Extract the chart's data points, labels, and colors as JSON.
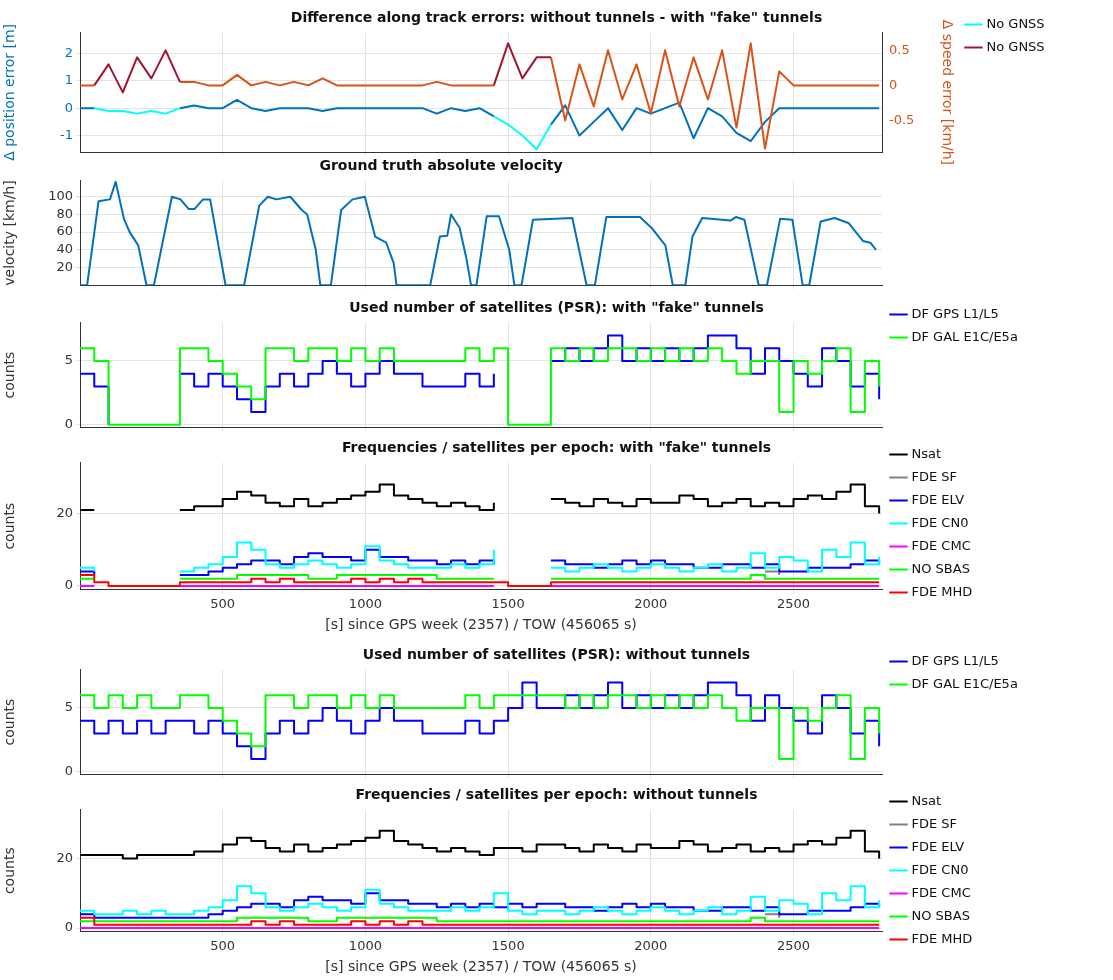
{
  "chart_data": [
    {
      "type": "line",
      "title": "Difference along track errors: without tunnels - with \"fake\" tunnels",
      "ylabel": "Δ position error [m]",
      "y2label": "Δ speed error [km/h]",
      "xlim": [
        0,
        2810
      ],
      "xticks": [
        500,
        1000,
        1500,
        2000,
        2500
      ],
      "ylim": [
        -1.6,
        2.75
      ],
      "yticks": [
        -1,
        0,
        1,
        2
      ],
      "y2lim": [
        -0.95,
        0.75
      ],
      "y2ticks": [
        -0.5,
        0,
        0.5
      ],
      "grid": true,
      "legend": "top right",
      "tick_labels": "y",
      "x": [
        0,
        50,
        100,
        150,
        200,
        250,
        300,
        350,
        400,
        450,
        500,
        550,
        600,
        650,
        700,
        750,
        800,
        850,
        900,
        950,
        1000,
        1050,
        1100,
        1150,
        1200,
        1250,
        1300,
        1350,
        1400,
        1450,
        1500,
        1550,
        1600,
        1650,
        1700,
        1750,
        1800,
        1850,
        1900,
        1950,
        2000,
        2050,
        2100,
        2150,
        2200,
        2250,
        2300,
        2350,
        2400,
        2450,
        2500,
        2550,
        2600,
        2650,
        2700,
        2750,
        2800
      ],
      "series": [
        {
          "color": "#0072bd",
          "values": [
            0,
            0,
            null,
            null,
            null,
            null,
            null,
            0,
            0.1,
            0,
            0,
            0.3,
            0,
            -0.1,
            0,
            0,
            0,
            -0.1,
            0,
            0,
            0,
            0,
            0,
            0,
            0,
            -0.2,
            0,
            -0.1,
            0,
            -0.3,
            null,
            null,
            null,
            -0.6,
            0.1,
            -1.0,
            -0.5,
            0,
            -0.8,
            0,
            -0.2,
            0,
            0.2,
            -1.1,
            0,
            -0.3,
            -0.9,
            -1.2,
            -0.5,
            0,
            0,
            0,
            0,
            0,
            0,
            0,
            0
          ]
        },
        {
          "name": "No GNSS",
          "color": "#00ffff",
          "values": [
            null,
            0,
            -0.1,
            -0.1,
            -0.2,
            -0.1,
            -0.2,
            0,
            null,
            null,
            null,
            null,
            null,
            null,
            null,
            null,
            null,
            null,
            null,
            null,
            null,
            null,
            null,
            null,
            null,
            null,
            null,
            null,
            null,
            -0.3,
            -0.6,
            -1.0,
            -1.5,
            -0.6,
            null,
            null,
            null,
            null,
            null,
            null,
            null,
            null,
            null,
            null,
            null,
            null,
            null,
            null,
            null,
            null,
            null,
            null,
            null,
            null,
            null,
            null,
            null
          ]
        },
        {
          "axis": "y2",
          "color": "#d95319",
          "values": [
            0,
            0,
            null,
            null,
            null,
            null,
            null,
            0.05,
            0.05,
            0,
            0,
            0.15,
            0,
            0.05,
            0,
            0.05,
            0,
            0.1,
            0,
            0,
            0,
            0,
            0,
            0,
            0,
            0.05,
            0,
            0,
            0,
            0,
            null,
            null,
            null,
            0.4,
            -0.5,
            0.3,
            -0.3,
            0.5,
            -0.2,
            0.3,
            -0.4,
            0.5,
            -0.3,
            0.4,
            -0.2,
            0.5,
            -0.6,
            0.6,
            -0.9,
            0.2,
            0,
            0,
            0,
            0,
            0,
            0,
            0
          ]
        },
        {
          "name": "No GNSS",
          "axis": "y2",
          "color": "#a2142f",
          "values": [
            null,
            0,
            0.3,
            -0.1,
            0.4,
            0.1,
            0.5,
            0.05,
            null,
            null,
            null,
            null,
            null,
            null,
            null,
            null,
            null,
            null,
            null,
            null,
            null,
            null,
            null,
            null,
            null,
            null,
            null,
            null,
            null,
            0,
            0.6,
            0.1,
            0.4,
            0.4,
            null,
            null,
            null,
            null,
            null,
            null,
            null,
            null,
            null,
            null,
            null,
            null,
            null,
            null,
            null,
            null,
            null,
            null,
            null,
            null,
            null,
            null,
            null
          ]
        }
      ]
    },
    {
      "type": "line",
      "title": "Ground truth absolute velocity",
      "ylabel": "velocity [km/h]",
      "xlim": [
        0,
        2810
      ],
      "xticks": [
        500,
        1000,
        1500,
        2000,
        2500
      ],
      "ylim": [
        0,
        118
      ],
      "yticks": [
        20,
        40,
        60,
        80,
        100
      ],
      "grid": true,
      "tick_labels": "y",
      "x": [
        0,
        25,
        65,
        105,
        125,
        154,
        174,
        204,
        233,
        259,
        322,
        352,
        381,
        401,
        431,
        456,
        510,
        575,
        628,
        658,
        688,
        737,
        777,
        796,
        826,
        842,
        879,
        915,
        955,
        998,
        1034,
        1073,
        1099,
        1109,
        1227,
        1261,
        1287,
        1300,
        1330,
        1354,
        1370,
        1389,
        1425,
        1468,
        1504,
        1522,
        1547,
        1587,
        1725,
        1775,
        1804,
        1844,
        1962,
        2002,
        2051,
        2077,
        2121,
        2146,
        2180,
        2279,
        2298,
        2328,
        2378,
        2407,
        2453,
        2496,
        2532,
        2555,
        2595,
        2644,
        2694,
        2743,
        2769,
        2789
      ],
      "series": [
        {
          "color": "#0072bd",
          "values": [
            0,
            0,
            95,
            97,
            117,
            75,
            60,
            45,
            0,
            0,
            100,
            97,
            86,
            86,
            97,
            97,
            0,
            0,
            90,
            100,
            97,
            100,
            85,
            80,
            40,
            0,
            0,
            85,
            97,
            100,
            55,
            48,
            25,
            0,
            0,
            55,
            56,
            80,
            65,
            30,
            0,
            0,
            78,
            78,
            40,
            0,
            0,
            74,
            76,
            0,
            0,
            77,
            77,
            65,
            45,
            0,
            0,
            55,
            76,
            73,
            77,
            74,
            0,
            0,
            75,
            74,
            0,
            0,
            72,
            76,
            70,
            50,
            48,
            40
          ]
        }
      ]
    },
    {
      "type": "step",
      "title": "Used number of satellites (PSR): with \"fake\" tunnels",
      "ylabel": "counts",
      "xlim": [
        0,
        2810
      ],
      "xticks": [
        500,
        1000,
        1500,
        2000,
        2500
      ],
      "ylim": [
        -0.2,
        8
      ],
      "yticks": [
        0,
        5
      ],
      "grid": true,
      "legend": "top right",
      "tick_labels": "y",
      "x": [
        0,
        50,
        100,
        150,
        200,
        250,
        300,
        350,
        400,
        450,
        500,
        550,
        600,
        650,
        700,
        750,
        800,
        850,
        900,
        950,
        1000,
        1050,
        1100,
        1150,
        1200,
        1250,
        1300,
        1350,
        1400,
        1450,
        1500,
        1550,
        1600,
        1650,
        1700,
        1750,
        1800,
        1850,
        1900,
        1950,
        2000,
        2050,
        2100,
        2150,
        2200,
        2250,
        2300,
        2350,
        2400,
        2450,
        2500,
        2550,
        2600,
        2650,
        2700,
        2750,
        2800
      ],
      "series": [
        {
          "name": "DF GPS L1/L5",
          "color": "#0000ff",
          "values": [
            4,
            3,
            0,
            null,
            null,
            null,
            null,
            4,
            3,
            4,
            3,
            2,
            1,
            3,
            4,
            3,
            4,
            5,
            4,
            3,
            4,
            5,
            4,
            4,
            3,
            3,
            3,
            4,
            3,
            4,
            null,
            null,
            null,
            5,
            6,
            5,
            6,
            7,
            5,
            6,
            5,
            6,
            5,
            6,
            7,
            7,
            6,
            4,
            6,
            5,
            4,
            3,
            6,
            5,
            3,
            4,
            2
          ]
        },
        {
          "name": "DF GAL E1C/E5a",
          "color": "#00ff00",
          "values": [
            6,
            5,
            0,
            0,
            0,
            0,
            0,
            6,
            6,
            5,
            4,
            3,
            2,
            6,
            6,
            5,
            6,
            6,
            5,
            6,
            5,
            6,
            5,
            5,
            5,
            5,
            5,
            6,
            5,
            6,
            0,
            0,
            0,
            6,
            5,
            6,
            5,
            6,
            6,
            5,
            6,
            5,
            6,
            5,
            6,
            5,
            4,
            5,
            5,
            1,
            5,
            4,
            5,
            6,
            1,
            5,
            3
          ]
        }
      ]
    },
    {
      "type": "step",
      "title": "Frequencies / satellites per epoch: with \"fake\" tunnels",
      "xlabel": "[s] since GPS week (2357) / TOW (456065 s)",
      "ylabel": "counts",
      "xlim": [
        0,
        2810
      ],
      "xticks": [
        500,
        1000,
        1500,
        2000,
        2500
      ],
      "ylim": [
        -1,
        34
      ],
      "yticks": [
        0,
        20
      ],
      "grid": true,
      "legend": "top right",
      "x": [
        0,
        50,
        100,
        150,
        200,
        250,
        300,
        350,
        400,
        450,
        500,
        550,
        600,
        650,
        700,
        750,
        800,
        850,
        900,
        950,
        1000,
        1050,
        1100,
        1150,
        1200,
        1250,
        1300,
        1350,
        1400,
        1450,
        1500,
        1550,
        1600,
        1650,
        1700,
        1750,
        1800,
        1850,
        1900,
        1950,
        2000,
        2050,
        2100,
        2150,
        2200,
        2250,
        2300,
        2350,
        2400,
        2450,
        2500,
        2550,
        2600,
        2650,
        2700,
        2750,
        2800
      ],
      "series": [
        {
          "name": "Nsat",
          "color": "#000000",
          "values": [
            21,
            21,
            null,
            null,
            null,
            null,
            null,
            21,
            22,
            22,
            24,
            26,
            25,
            23,
            22,
            24,
            22,
            23,
            24,
            25,
            26,
            28,
            25,
            24,
            23,
            22,
            23,
            22,
            21,
            23,
            null,
            null,
            null,
            24,
            23,
            22,
            24,
            23,
            22,
            24,
            23,
            23,
            25,
            24,
            22,
            23,
            24,
            22,
            23,
            22,
            24,
            25,
            24,
            26,
            28,
            22,
            20
          ]
        },
        {
          "name": "FDE SF",
          "color": "#808080",
          "values": [
            null,
            null,
            null,
            null,
            null,
            null,
            null,
            null,
            null,
            null,
            null,
            null,
            null,
            null,
            null,
            null,
            null,
            null,
            null,
            null,
            null,
            null,
            null,
            null,
            null,
            null,
            null,
            null,
            null,
            null,
            null,
            null,
            null,
            null,
            null,
            null,
            null,
            null,
            null,
            null,
            null,
            null,
            null,
            null,
            null,
            null,
            null,
            null,
            4,
            3,
            null,
            null,
            null,
            null,
            null,
            null,
            null
          ]
        },
        {
          "name": "FDE ELV",
          "color": "#0000ff",
          "values": [
            4,
            3,
            null,
            null,
            null,
            null,
            null,
            3,
            3,
            4,
            5,
            6,
            7,
            7,
            6,
            8,
            9,
            8,
            8,
            7,
            10,
            8,
            8,
            7,
            7,
            6,
            7,
            6,
            7,
            6,
            null,
            null,
            null,
            7,
            6,
            6,
            5,
            6,
            7,
            6,
            7,
            6,
            6,
            5,
            5,
            6,
            6,
            5,
            6,
            4,
            4,
            5,
            5,
            5,
            6,
            7,
            6
          ]
        },
        {
          "name": "FDE CN0",
          "color": "#00ffff",
          "values": [
            5,
            4,
            null,
            null,
            null,
            null,
            null,
            4,
            5,
            6,
            8,
            12,
            10,
            6,
            5,
            6,
            7,
            6,
            5,
            6,
            11,
            7,
            6,
            5,
            5,
            5,
            6,
            5,
            6,
            10,
            null,
            null,
            null,
            5,
            4,
            5,
            6,
            5,
            4,
            5,
            6,
            5,
            4,
            5,
            6,
            4,
            5,
            9,
            5,
            8,
            7,
            4,
            10,
            8,
            12,
            6,
            8
          ]
        },
        {
          "name": "FDE CMC",
          "color": "#ff00ff",
          "values": [
            0,
            0,
            null,
            null,
            null,
            null,
            null,
            0,
            0,
            0,
            0,
            0,
            0,
            0,
            0,
            0,
            0,
            0,
            0,
            0,
            0,
            0,
            0,
            0,
            0,
            0,
            0,
            0,
            0,
            0,
            null,
            null,
            null,
            0,
            0,
            0,
            0,
            0,
            0,
            0,
            0,
            0,
            0,
            0,
            0,
            0,
            0,
            0,
            0,
            0,
            0,
            0,
            0,
            0,
            0,
            0,
            0
          ]
        },
        {
          "name": "NO SBAS",
          "color": "#00ff00",
          "values": [
            2,
            2,
            null,
            null,
            null,
            null,
            null,
            2,
            2,
            2,
            2,
            3,
            3,
            3,
            3,
            3,
            2,
            2,
            3,
            3,
            3,
            3,
            3,
            3,
            3,
            2,
            2,
            2,
            2,
            2,
            null,
            null,
            null,
            2,
            2,
            2,
            2,
            2,
            2,
            2,
            2,
            2,
            2,
            2,
            2,
            2,
            2,
            3,
            2,
            2,
            2,
            2,
            2,
            2,
            2,
            2,
            2
          ]
        },
        {
          "name": "FDE MHD",
          "color": "#ff0000",
          "values": [
            3,
            1,
            0,
            0,
            0,
            0,
            0,
            1,
            1,
            1,
            1,
            1,
            2,
            1,
            2,
            1,
            1,
            1,
            1,
            2,
            1,
            2,
            1,
            2,
            1,
            1,
            1,
            1,
            1,
            1,
            0,
            0,
            0,
            1,
            1,
            1,
            1,
            1,
            1,
            1,
            1,
            1,
            1,
            1,
            1,
            1,
            1,
            1,
            1,
            1,
            1,
            1,
            1,
            1,
            1,
            1,
            1
          ]
        }
      ]
    },
    {
      "type": "step",
      "title": "Used number of satellites (PSR): without tunnels",
      "ylabel": "counts",
      "xlim": [
        0,
        2810
      ],
      "xticks": [
        500,
        1000,
        1500,
        2000,
        2500
      ],
      "ylim": [
        -0.2,
        8
      ],
      "yticks": [
        0,
        5
      ],
      "grid": true,
      "legend": "top right",
      "tick_labels": "y",
      "x": [
        0,
        50,
        100,
        150,
        200,
        250,
        300,
        350,
        400,
        450,
        500,
        550,
        600,
        650,
        700,
        750,
        800,
        850,
        900,
        950,
        1000,
        1050,
        1100,
        1150,
        1200,
        1250,
        1300,
        1350,
        1400,
        1450,
        1500,
        1550,
        1600,
        1650,
        1700,
        1750,
        1800,
        1850,
        1900,
        1950,
        2000,
        2050,
        2100,
        2150,
        2200,
        2250,
        2300,
        2350,
        2400,
        2450,
        2500,
        2550,
        2600,
        2650,
        2700,
        2750,
        2800
      ],
      "series": [
        {
          "name": "DF GPS L1/L5",
          "color": "#0000ff",
          "values": [
            4,
            3,
            4,
            3,
            4,
            3,
            4,
            4,
            3,
            4,
            3,
            2,
            1,
            3,
            4,
            3,
            4,
            5,
            4,
            3,
            4,
            5,
            4,
            4,
            3,
            3,
            3,
            4,
            3,
            4,
            5,
            7,
            5,
            5,
            6,
            5,
            6,
            7,
            5,
            6,
            5,
            6,
            5,
            6,
            7,
            7,
            6,
            4,
            6,
            5,
            4,
            3,
            6,
            5,
            3,
            4,
            2
          ]
        },
        {
          "name": "DF GAL E1C/E5a",
          "color": "#00ff00",
          "values": [
            6,
            5,
            6,
            5,
            6,
            5,
            5,
            6,
            6,
            5,
            4,
            3,
            2,
            6,
            6,
            5,
            6,
            6,
            5,
            6,
            5,
            6,
            5,
            5,
            5,
            5,
            5,
            6,
            5,
            6,
            6,
            6,
            6,
            6,
            5,
            6,
            5,
            6,
            6,
            5,
            6,
            5,
            6,
            5,
            6,
            5,
            4,
            5,
            5,
            1,
            5,
            4,
            5,
            6,
            1,
            5,
            3
          ]
        }
      ]
    },
    {
      "type": "step",
      "title": "Frequencies / satellites per epoch: without tunnels",
      "xlabel": "[s] since GPS week (2357) / TOW (456065 s)",
      "ylabel": "counts",
      "xlim": [
        0,
        2810
      ],
      "xticks": [
        500,
        1000,
        1500,
        2000,
        2500
      ],
      "ylim": [
        -1,
        34
      ],
      "yticks": [
        0,
        20
      ],
      "grid": true,
      "legend": "top right",
      "x": [
        0,
        50,
        100,
        150,
        200,
        250,
        300,
        350,
        400,
        450,
        500,
        550,
        600,
        650,
        700,
        750,
        800,
        850,
        900,
        950,
        1000,
        1050,
        1100,
        1150,
        1200,
        1250,
        1300,
        1350,
        1400,
        1450,
        1500,
        1550,
        1600,
        1650,
        1700,
        1750,
        1800,
        1850,
        1900,
        1950,
        2000,
        2050,
        2100,
        2150,
        2200,
        2250,
        2300,
        2350,
        2400,
        2450,
        2500,
        2550,
        2600,
        2650,
        2700,
        2750,
        2800
      ],
      "series": [
        {
          "name": "Nsat",
          "color": "#000000",
          "values": [
            21,
            21,
            21,
            20,
            21,
            21,
            21,
            21,
            22,
            22,
            24,
            26,
            25,
            23,
            22,
            24,
            22,
            23,
            24,
            25,
            26,
            28,
            25,
            24,
            23,
            22,
            23,
            22,
            21,
            23,
            23,
            22,
            24,
            24,
            23,
            22,
            24,
            23,
            22,
            24,
            23,
            23,
            25,
            24,
            22,
            23,
            24,
            22,
            23,
            22,
            24,
            25,
            24,
            26,
            28,
            22,
            20
          ]
        },
        {
          "name": "FDE SF",
          "color": "#808080",
          "values": [
            null,
            null,
            null,
            null,
            null,
            null,
            null,
            null,
            null,
            null,
            null,
            null,
            null,
            null,
            null,
            null,
            null,
            null,
            null,
            null,
            null,
            null,
            null,
            null,
            null,
            null,
            null,
            null,
            null,
            null,
            null,
            null,
            null,
            null,
            null,
            null,
            null,
            null,
            null,
            null,
            null,
            null,
            null,
            null,
            null,
            null,
            null,
            null,
            4,
            3,
            null,
            null,
            null,
            null,
            null,
            null,
            null
          ]
        },
        {
          "name": "FDE ELV",
          "color": "#0000ff",
          "values": [
            4,
            3,
            3,
            3,
            3,
            3,
            3,
            3,
            3,
            4,
            5,
            6,
            7,
            7,
            6,
            8,
            9,
            8,
            8,
            7,
            10,
            8,
            8,
            7,
            7,
            6,
            7,
            6,
            7,
            6,
            7,
            6,
            7,
            7,
            6,
            6,
            5,
            6,
            7,
            6,
            7,
            6,
            6,
            5,
            5,
            6,
            6,
            5,
            6,
            4,
            4,
            5,
            5,
            5,
            6,
            7,
            6
          ]
        },
        {
          "name": "FDE CN0",
          "color": "#00ffff",
          "values": [
            5,
            4,
            4,
            5,
            4,
            5,
            4,
            4,
            5,
            6,
            8,
            12,
            10,
            6,
            5,
            6,
            7,
            6,
            5,
            6,
            11,
            7,
            6,
            5,
            5,
            5,
            6,
            5,
            6,
            10,
            5,
            4,
            5,
            5,
            4,
            5,
            6,
            5,
            4,
            5,
            6,
            5,
            4,
            5,
            6,
            4,
            5,
            9,
            5,
            8,
            7,
            4,
            10,
            8,
            12,
            6,
            8
          ]
        },
        {
          "name": "FDE CMC",
          "color": "#ff00ff",
          "values": [
            0,
            0,
            0,
            0,
            0,
            0,
            0,
            0,
            0,
            0,
            0,
            0,
            0,
            0,
            0,
            0,
            0,
            0,
            0,
            0,
            0,
            0,
            0,
            0,
            0,
            0,
            0,
            0,
            0,
            0,
            0,
            0,
            0,
            0,
            0,
            0,
            0,
            0,
            0,
            0,
            0,
            0,
            0,
            0,
            0,
            0,
            0,
            0,
            0,
            0,
            0,
            0,
            0,
            0,
            0,
            0,
            0
          ]
        },
        {
          "name": "NO SBAS",
          "color": "#00ff00",
          "values": [
            2,
            2,
            2,
            2,
            2,
            2,
            2,
            2,
            2,
            2,
            2,
            3,
            3,
            3,
            3,
            3,
            2,
            2,
            3,
            3,
            3,
            3,
            3,
            3,
            3,
            2,
            2,
            2,
            2,
            2,
            2,
            2,
            2,
            2,
            2,
            2,
            2,
            2,
            2,
            2,
            2,
            2,
            2,
            2,
            2,
            2,
            2,
            3,
            2,
            2,
            2,
            2,
            2,
            2,
            2,
            2,
            2
          ]
        },
        {
          "name": "FDE MHD",
          "color": "#ff0000",
          "values": [
            3,
            1,
            1,
            1,
            1,
            1,
            1,
            1,
            1,
            1,
            1,
            1,
            2,
            1,
            2,
            1,
            1,
            1,
            1,
            2,
            1,
            2,
            1,
            2,
            1,
            1,
            1,
            1,
            1,
            1,
            1,
            1,
            1,
            1,
            1,
            1,
            1,
            1,
            1,
            1,
            1,
            1,
            1,
            1,
            1,
            1,
            1,
            1,
            1,
            1,
            1,
            1,
            1,
            1,
            1,
            1,
            1
          ]
        }
      ]
    }
  ]
}
